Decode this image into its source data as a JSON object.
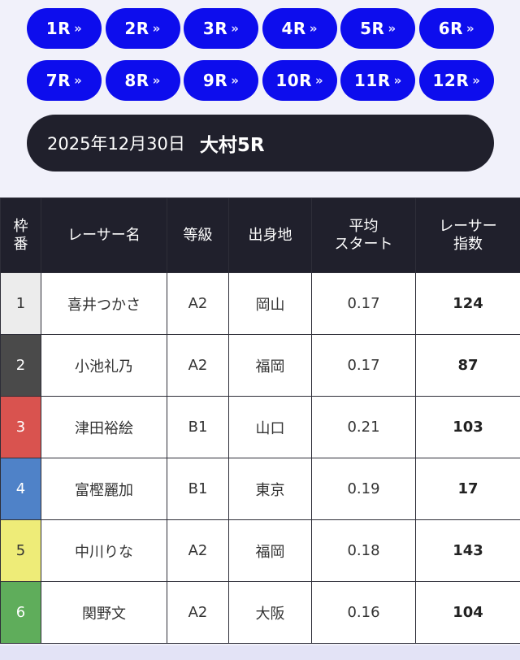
{
  "race_nav": {
    "row1": [
      {
        "label": "1R"
      },
      {
        "label": "2R"
      },
      {
        "label": "3R"
      },
      {
        "label": "4R"
      },
      {
        "label": "5R"
      },
      {
        "label": "6R"
      }
    ],
    "row2": [
      {
        "label": "7R"
      },
      {
        "label": "8R"
      },
      {
        "label": "9R"
      },
      {
        "label": "10R"
      },
      {
        "label": "11R"
      },
      {
        "label": "12R"
      }
    ],
    "arrow_glyph": "»",
    "button_color": "#0d0ded"
  },
  "title": {
    "date": "2025年12月30日",
    "venue_race": "大村5R"
  },
  "table": {
    "headers": {
      "frame": [
        "枠",
        "番"
      ],
      "name": "レーサー名",
      "grade": "等級",
      "origin": "出身地",
      "avg_start": [
        "平均",
        "スタート"
      ],
      "index": [
        "レーサー",
        "指数"
      ]
    },
    "rows": [
      {
        "frame": "1",
        "frame_color": "#ececec",
        "frame_text_color": "#333333",
        "name": "喜井つかさ",
        "grade": "A2",
        "origin": "岡山",
        "avg_start": "0.17",
        "index": "124"
      },
      {
        "frame": "2",
        "frame_color": "#4a4a4a",
        "frame_text_color": "#ffffff",
        "name": "小池礼乃",
        "grade": "A2",
        "origin": "福岡",
        "avg_start": "0.17",
        "index": "87"
      },
      {
        "frame": "3",
        "frame_color": "#d9534f",
        "frame_text_color": "#ffffff",
        "name": "津田裕絵",
        "grade": "B1",
        "origin": "山口",
        "avg_start": "0.21",
        "index": "103"
      },
      {
        "frame": "4",
        "frame_color": "#4f82c8",
        "frame_text_color": "#ffffff",
        "name": "富樫麗加",
        "grade": "B1",
        "origin": "東京",
        "avg_start": "0.19",
        "index": "17"
      },
      {
        "frame": "5",
        "frame_color": "#eeec78",
        "frame_text_color": "#333333",
        "name": "中川りな",
        "grade": "A2",
        "origin": "福岡",
        "avg_start": "0.18",
        "index": "143"
      },
      {
        "frame": "6",
        "frame_color": "#5fad5b",
        "frame_text_color": "#ffffff",
        "name": "関野文",
        "grade": "A2",
        "origin": "大阪",
        "avg_start": "0.16",
        "index": "104"
      }
    ]
  }
}
